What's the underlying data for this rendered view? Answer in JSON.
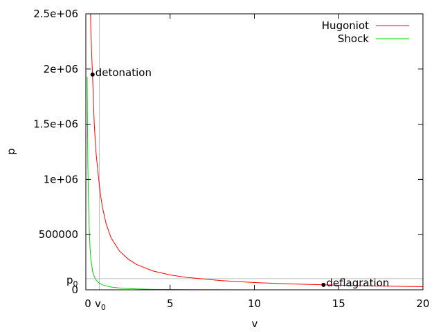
{
  "chart_data": {
    "type": "line",
    "title": "",
    "xlabel": "v",
    "ylabel": "p",
    "xlim": [
      0,
      20
    ],
    "ylim": [
      0,
      2500000
    ],
    "grid": false,
    "legend_position": "top-right",
    "x_ticks": [
      {
        "value": 5,
        "label": "5"
      },
      {
        "value": 10,
        "label": "10"
      },
      {
        "value": 15,
        "label": "15"
      },
      {
        "value": 20,
        "label": "20"
      }
    ],
    "y_ticks": [
      {
        "value": 0,
        "label": "0"
      },
      {
        "value": 500000,
        "label": "500000"
      },
      {
        "value": 1000000,
        "label": "1e+06"
      },
      {
        "value": 1500000,
        "label": "1.5e+06"
      },
      {
        "value": 2000000,
        "label": "2e+06"
      },
      {
        "value": 2500000,
        "label": "2.5e+06"
      }
    ],
    "x_zero_label": "0",
    "reference": {
      "v0": 0.8,
      "p0": 101325,
      "v0_label": "v",
      "v0_label_sub": "0",
      "p0_label": "p",
      "p0_label_sub": "0",
      "color": "#c0c0c0"
    },
    "series": [
      {
        "name": "Hugoniot",
        "color": "#ff0000",
        "x": [
          0.28,
          0.3,
          0.35,
          0.4,
          0.45,
          0.5,
          0.6,
          0.7,
          0.8,
          0.9,
          1.0,
          1.2,
          1.5,
          2.0,
          2.5,
          3.0,
          4.0,
          5.0,
          6.0,
          8.0,
          10.0,
          12.0,
          14.1,
          16.0,
          18.0,
          20.0
        ],
        "y": [
          2500000,
          2350000,
          2120000,
          1950000,
          1700000,
          1500000,
          1250000,
          1100000,
          950000,
          830000,
          740000,
          600000,
          470000,
          350000,
          280000,
          230000,
          170000,
          135000,
          112000,
          84000,
          66000,
          54000,
          45000,
          38000,
          33000,
          28000
        ]
      },
      {
        "name": "Shock",
        "color": "#00d000",
        "x": [
          0.08,
          0.1,
          0.12,
          0.15,
          0.2,
          0.25,
          0.3,
          0.4,
          0.5,
          0.6,
          0.8,
          1.0,
          1.5,
          2.0,
          3.0,
          4.0,
          6.0,
          8.0,
          10.0,
          12.0
        ],
        "y": [
          1930000,
          1500000,
          1150000,
          850000,
          550000,
          380000,
          280000,
          170000,
          120000,
          90000,
          60000,
          45000,
          25000,
          16000,
          8000,
          4000,
          1500,
          700,
          300,
          0
        ]
      }
    ],
    "points": [
      {
        "label": "detonation",
        "x": 0.4,
        "y": 1950000
      },
      {
        "label": "deflagration",
        "x": 14.1,
        "y": 45000
      }
    ]
  }
}
